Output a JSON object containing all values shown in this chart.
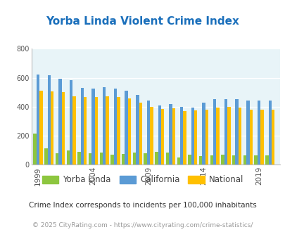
{
  "title": "Yorba Linda Violent Crime Index",
  "title_color": "#1a6fbb",
  "subtitle": "Crime Index corresponds to incidents per 100,000 inhabitants",
  "footer": "© 2025 CityRating.com - https://www.cityrating.com/crime-statistics/",
  "years": [
    1999,
    2000,
    2001,
    2002,
    2003,
    2004,
    2005,
    2006,
    2007,
    2008,
    2009,
    2010,
    2011,
    2012,
    2013,
    2014,
    2015,
    2016,
    2017,
    2018,
    2019,
    2020
  ],
  "yorba_linda": [
    215,
    115,
    80,
    100,
    90,
    80,
    85,
    70,
    75,
    85,
    80,
    90,
    85,
    50,
    70,
    60,
    65,
    70,
    65,
    65,
    65,
    65
  ],
  "california": [
    620,
    615,
    595,
    585,
    530,
    525,
    535,
    525,
    510,
    480,
    445,
    410,
    420,
    400,
    395,
    430,
    450,
    450,
    450,
    445,
    445,
    445
  ],
  "national": [
    510,
    505,
    500,
    470,
    465,
    465,
    470,
    465,
    455,
    430,
    400,
    385,
    390,
    370,
    375,
    380,
    395,
    400,
    395,
    380,
    380,
    380
  ],
  "yorba_linda_color": "#8dc63f",
  "california_color": "#5b9bd5",
  "national_color": "#ffc000",
  "plot_bg_color": "#e8f4f8",
  "ylim": [
    0,
    800
  ],
  "yticks": [
    0,
    200,
    400,
    600,
    800
  ],
  "xtick_labels": [
    "1999",
    "2004",
    "2009",
    "2014",
    "2019"
  ],
  "xtick_positions": [
    1999,
    2004,
    2009,
    2014,
    2019
  ],
  "legend_labels": [
    "Yorba Linda",
    "California",
    "National"
  ],
  "bar_width": 0.28
}
